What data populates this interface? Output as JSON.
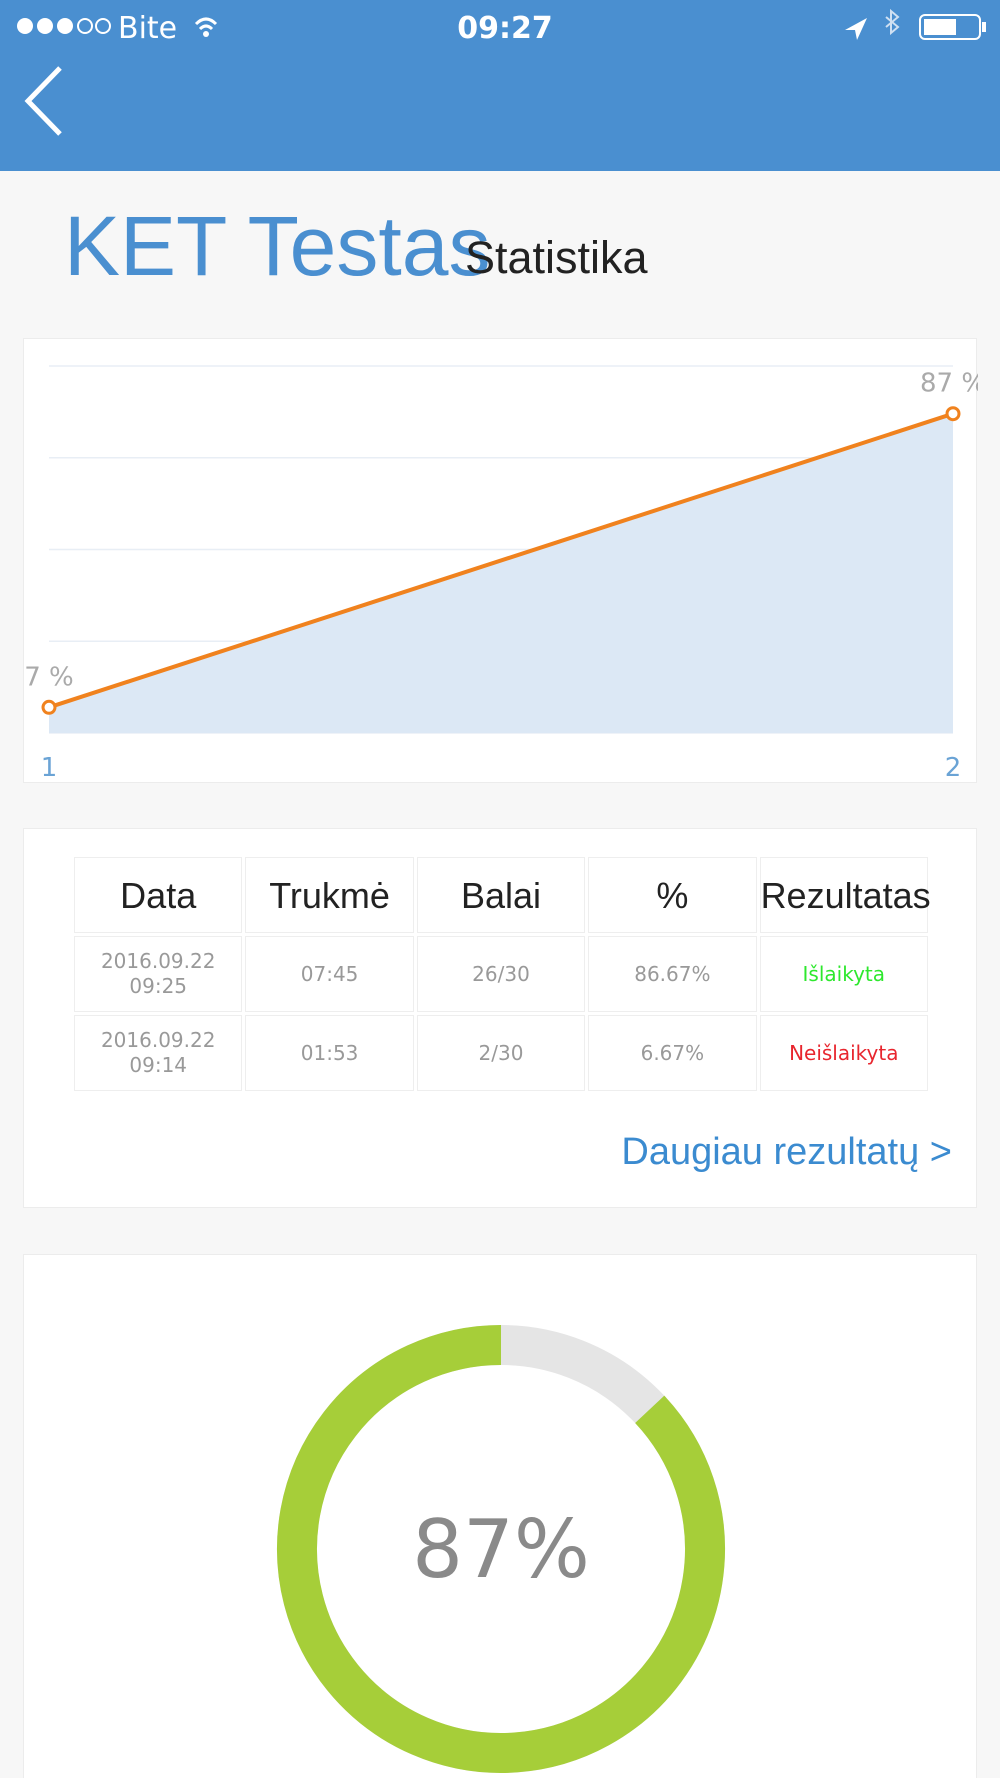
{
  "status_bar": {
    "carrier": "Bite",
    "time": "09:27"
  },
  "header": {
    "title": "KET Testas",
    "subtitle": "Statistika"
  },
  "line_chart": {
    "type": "line",
    "x": [
      1,
      2
    ],
    "values": [
      7,
      87
    ],
    "value_labels": [
      "7 %",
      "87 %"
    ],
    "xlim": [
      1,
      2
    ],
    "ylim": [
      0,
      100
    ],
    "yticks": [
      0,
      25,
      50,
      75,
      100
    ],
    "grid": true,
    "color": "#f0821e",
    "area_color": "#dce8f5"
  },
  "table": {
    "headers": [
      "Data",
      "Trukmė",
      "Balai",
      "%",
      "Rezultatas"
    ],
    "rows": [
      [
        "2016.09.22\n09:25",
        "07:45",
        "26/30",
        "86.67%",
        "Išlaikyta"
      ],
      [
        "2016.09.22\n09:14",
        "01:53",
        "2/30",
        "6.67%",
        "Neišlaikyta"
      ]
    ],
    "link": "Daugiau rezultatų >"
  },
  "donut": {
    "type": "donut",
    "value": 87,
    "value_label": "87%",
    "color": "#a6ce39",
    "track_color": "#e5e5e5"
  }
}
